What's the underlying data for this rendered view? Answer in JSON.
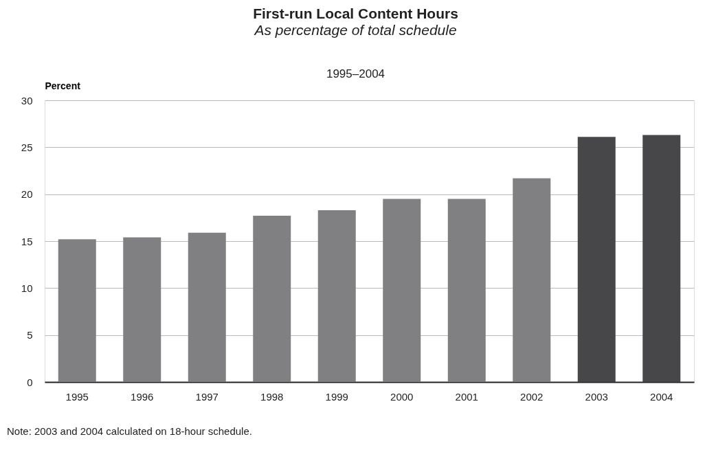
{
  "chart_data": {
    "type": "bar",
    "title": "First-run Local Content Hours",
    "subtitle": "As percentage of total schedule",
    "ylabel": "Percent",
    "categories": [
      "1995",
      "1996",
      "1997",
      "1998",
      "1999",
      "2000",
      "2001",
      "2002",
      "2003",
      "2004"
    ],
    "values": [
      15.2,
      15.4,
      15.9,
      17.7,
      18.3,
      19.5,
      19.5,
      21.7,
      26.1,
      26.3
    ],
    "colors": [
      "#808083",
      "#808083",
      "#808083",
      "#808083",
      "#808083",
      "#808083",
      "#808083",
      "#808083",
      "#47474a",
      "#47474a"
    ],
    "ylim": [
      0,
      30
    ],
    "yticks": [
      0,
      5,
      10,
      15,
      20,
      25,
      30
    ],
    "grid": "y",
    "annotations": [
      "1995–2004",
      "Note: 2003 and 2004 calculated on 18-hour schedule."
    ]
  }
}
